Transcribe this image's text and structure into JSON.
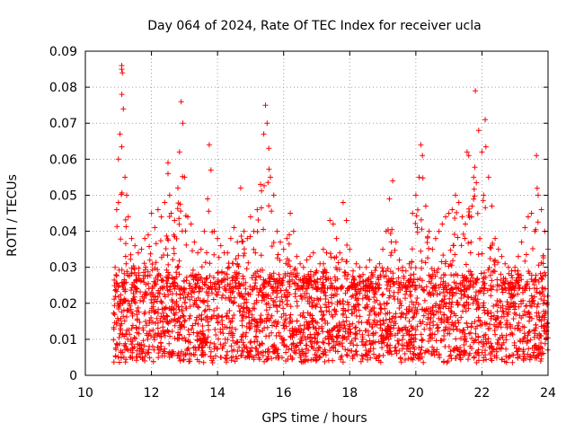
{
  "chart_data": {
    "type": "scatter",
    "title": "Day 064 of 2024, Rate Of TEC Index for receiver ucla",
    "xlabel": "GPS time / hours",
    "ylabel": "ROTI / TECUs",
    "xlim": [
      10,
      24
    ],
    "ylim": [
      0,
      0.09
    ],
    "xticks": [
      10,
      12,
      14,
      16,
      18,
      20,
      22,
      24
    ],
    "xtick_labels": [
      "10",
      "12",
      "14",
      "16",
      "18",
      "20",
      "22",
      "24"
    ],
    "yticks": [
      0,
      0.01,
      0.02,
      0.03,
      0.04,
      0.05,
      0.06,
      0.07,
      0.08,
      0.09
    ],
    "ytick_labels": [
      "0",
      "0.01",
      "0.02",
      "0.03",
      "0.04",
      "0.05",
      "0.06",
      "0.07",
      "0.08",
      "0.09"
    ],
    "grid": true,
    "marker": "+",
    "color": "#ff0000",
    "series": [
      {
        "name": "ROTI",
        "x": [
          10.9,
          10.95,
          11.0,
          11.05,
          11.1,
          11.1,
          11.12,
          11.15,
          11.2,
          11.25,
          11.3,
          11.4,
          11.5,
          11.6,
          11.7,
          11.8,
          11.9,
          12.0,
          12.1,
          12.2,
          12.3,
          12.4,
          12.5,
          12.5,
          12.55,
          12.6,
          12.7,
          12.8,
          12.85,
          12.9,
          12.95,
          13.0,
          13.1,
          13.2,
          13.3,
          13.4,
          13.5,
          13.6,
          13.7,
          13.75,
          13.8,
          13.9,
          14.0,
          14.1,
          14.2,
          14.3,
          14.4,
          14.5,
          14.6,
          14.7,
          14.8,
          14.9,
          15.0,
          15.1,
          15.2,
          15.3,
          15.4,
          15.45,
          15.5,
          15.55,
          15.6,
          15.7,
          15.8,
          15.9,
          16.0,
          16.1,
          16.2,
          16.3,
          16.4,
          16.5,
          16.6,
          16.7,
          16.8,
          16.9,
          17.0,
          17.1,
          17.2,
          17.3,
          17.4,
          17.5,
          17.6,
          17.7,
          17.8,
          17.9,
          18.0,
          18.1,
          18.2,
          18.3,
          18.4,
          18.5,
          18.6,
          18.7,
          18.8,
          18.9,
          19.0,
          19.1,
          19.2,
          19.3,
          19.4,
          19.5,
          19.6,
          19.7,
          19.8,
          19.9,
          20.0,
          20.1,
          20.15,
          20.2,
          20.3,
          20.4,
          20.5,
          20.6,
          20.7,
          20.8,
          20.9,
          21.0,
          21.1,
          21.2,
          21.3,
          21.4,
          21.5,
          21.55,
          21.6,
          21.7,
          21.75,
          21.8,
          21.9,
          22.0,
          22.05,
          22.1,
          22.2,
          22.3,
          22.4,
          22.5,
          22.6,
          22.7,
          22.8,
          22.9,
          23.0,
          23.1,
          23.2,
          23.3,
          23.4,
          23.5,
          23.6,
          23.65,
          23.7,
          23.8,
          23.9,
          24.0
        ],
        "y": [
          0.03,
          0.046,
          0.06,
          0.067,
          0.085,
          0.086,
          0.084,
          0.074,
          0.055,
          0.05,
          0.044,
          0.038,
          0.036,
          0.034,
          0.035,
          0.038,
          0.039,
          0.045,
          0.041,
          0.046,
          0.044,
          0.048,
          0.056,
          0.059,
          0.05,
          0.045,
          0.043,
          0.052,
          0.062,
          0.076,
          0.07,
          0.055,
          0.044,
          0.042,
          0.037,
          0.034,
          0.035,
          0.04,
          0.049,
          0.064,
          0.057,
          0.04,
          0.038,
          0.036,
          0.034,
          0.034,
          0.038,
          0.041,
          0.037,
          0.052,
          0.04,
          0.038,
          0.044,
          0.04,
          0.046,
          0.053,
          0.067,
          0.075,
          0.07,
          0.063,
          0.055,
          0.05,
          0.04,
          0.037,
          0.035,
          0.038,
          0.045,
          0.04,
          0.033,
          0.031,
          0.03,
          0.032,
          0.033,
          0.034,
          0.029,
          0.031,
          0.035,
          0.034,
          0.043,
          0.042,
          0.038,
          0.034,
          0.048,
          0.043,
          0.035,
          0.029,
          0.031,
          0.03,
          0.028,
          0.03,
          0.032,
          0.028,
          0.03,
          0.031,
          0.035,
          0.04,
          0.049,
          0.054,
          0.037,
          0.032,
          0.03,
          0.029,
          0.031,
          0.045,
          0.05,
          0.055,
          0.064,
          0.061,
          0.047,
          0.04,
          0.035,
          0.038,
          0.04,
          0.042,
          0.044,
          0.045,
          0.046,
          0.05,
          0.048,
          0.044,
          0.042,
          0.062,
          0.061,
          0.047,
          0.055,
          0.079,
          0.068,
          0.062,
          0.05,
          0.071,
          0.055,
          0.047,
          0.038,
          0.035,
          0.033,
          0.031,
          0.03,
          0.029,
          0.03,
          0.033,
          0.037,
          0.041,
          0.044,
          0.045,
          0.04,
          0.061,
          0.05,
          0.046,
          0.04,
          0.035
        ]
      }
    ],
    "dense_band": {
      "x_start": 10.85,
      "x_end": 24.0,
      "y_low": 0.004,
      "y_high": 0.028
    },
    "point_count": 12000
  }
}
